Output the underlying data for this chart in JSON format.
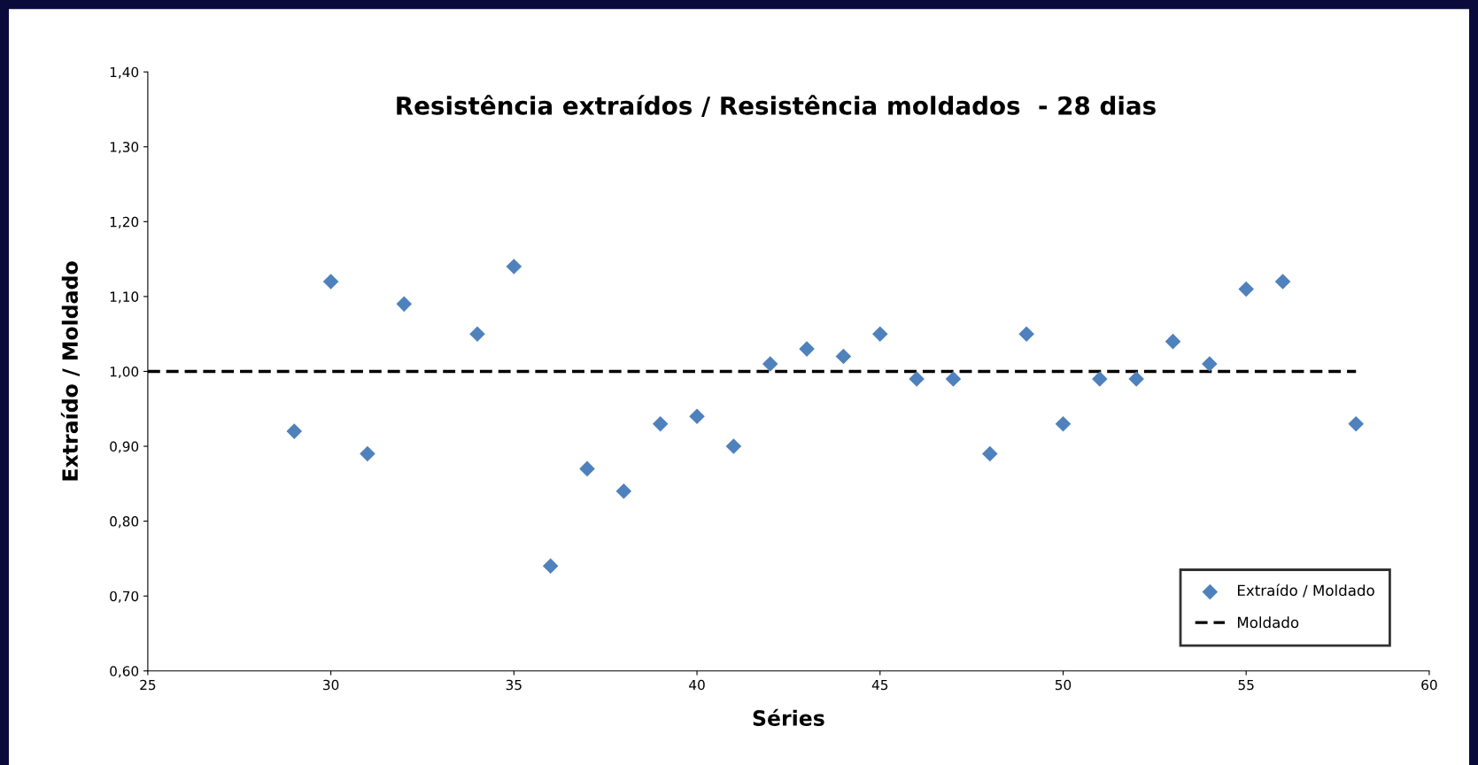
{
  "chart_data": {
    "type": "scatter",
    "title": "Resistência extraídos / Resistência moldados  - 28 dias",
    "xlabel": "Séries",
    "ylabel": "Extraído / Moldado",
    "series": [
      {
        "name": "Extraído / Moldado",
        "color": "#4f81bd",
        "marker": "diamond",
        "x": [
          29,
          30,
          31,
          32,
          34,
          35,
          36,
          37,
          38,
          39,
          40,
          41,
          42,
          43,
          44,
          45,
          46,
          47,
          48,
          49,
          50,
          51,
          52,
          53,
          54,
          55,
          56,
          58
        ],
        "values": [
          0.92,
          1.12,
          0.89,
          1.09,
          1.05,
          1.14,
          0.74,
          0.87,
          0.84,
          0.93,
          0.94,
          0.9,
          1.01,
          1.03,
          1.02,
          1.05,
          0.99,
          0.99,
          0.89,
          1.05,
          0.93,
          0.99,
          0.99,
          1.04,
          1.01,
          1.11,
          1.12,
          0.93
        ]
      },
      {
        "name": "Moldado",
        "type": "line",
        "color": "#000000",
        "line_style": "dashed",
        "marker": "none",
        "x": [
          25,
          58
        ],
        "values": [
          1.0,
          1.0
        ]
      }
    ],
    "xlim": [
      25,
      60
    ],
    "xticks": [
      25,
      30,
      35,
      40,
      45,
      50,
      55,
      60
    ],
    "ylim": [
      0.6,
      1.4
    ],
    "yticks": [
      {
        "value": 0.6,
        "label": "0,60"
      },
      {
        "value": 0.7,
        "label": "0,70"
      },
      {
        "value": 0.8,
        "label": "0,80"
      },
      {
        "value": 0.9,
        "label": "0,90"
      },
      {
        "value": 1.0,
        "label": "1,00"
      },
      {
        "value": 1.1,
        "label": "1,10"
      },
      {
        "value": 1.2,
        "label": "1,20"
      },
      {
        "value": 1.3,
        "label": "1,30"
      },
      {
        "value": 1.4,
        "label": "1,40"
      }
    ],
    "grid": false,
    "legend": "bottom right"
  }
}
